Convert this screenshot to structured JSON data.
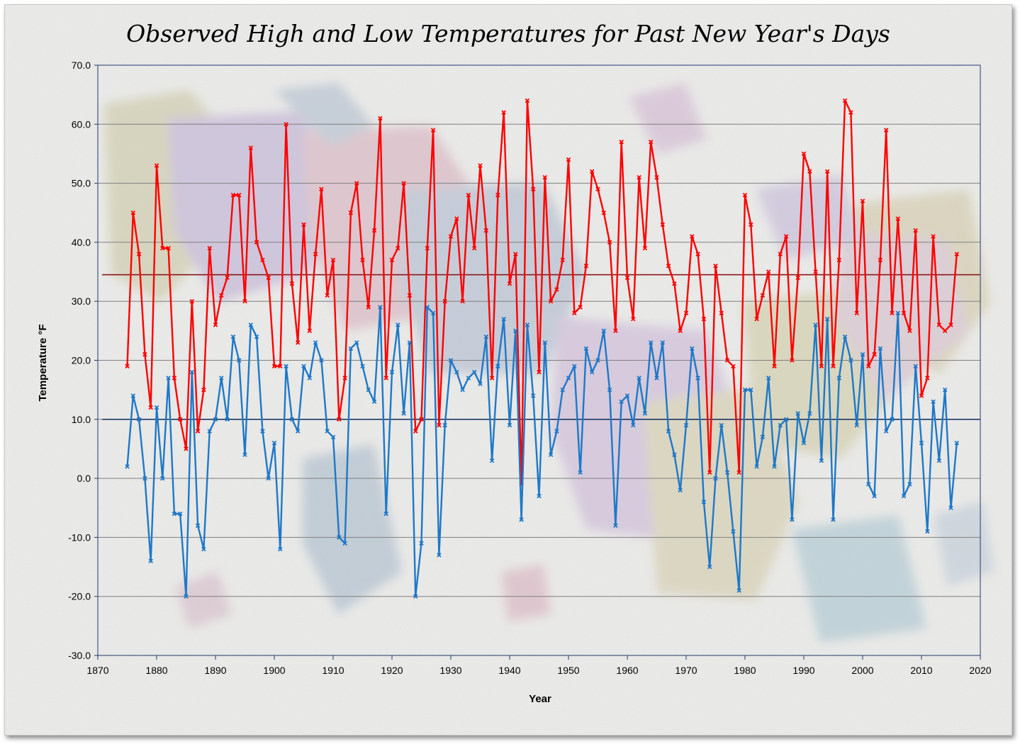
{
  "chart_data": {
    "type": "line",
    "title": "Observed High and Low Temperatures for Past New Year's Days",
    "xlabel": "Year",
    "ylabel": "Temperature °F",
    "xlim": [
      1870,
      2020
    ],
    "ylim": [
      -30,
      70
    ],
    "x_ticks": [
      1870,
      1880,
      1890,
      1900,
      1910,
      1920,
      1930,
      1940,
      1950,
      1960,
      1970,
      1980,
      1990,
      2000,
      2010,
      2020
    ],
    "y_ticks": [
      "-30.0",
      "-20.0",
      "-10.0",
      "0.0",
      "10.0",
      "20.0",
      "30.0",
      "40.0",
      "50.0",
      "60.0",
      "70.0"
    ],
    "grid": "horizontal",
    "legend": "none",
    "reference_lines": [
      {
        "value": 34.5,
        "color": "#8b1a1a"
      },
      {
        "value": 10.0,
        "color": "#1f3864"
      }
    ],
    "x_start": 1875,
    "series": [
      {
        "color": "#ff0000",
        "values": [
          19,
          45,
          38,
          21,
          12,
          53,
          39,
          39,
          17,
          10,
          5,
          30,
          8,
          15,
          39,
          26,
          31,
          34,
          48,
          48,
          30,
          56,
          40,
          37,
          34,
          19,
          19,
          60,
          33,
          23,
          43,
          25,
          38,
          49,
          31,
          37,
          10,
          17,
          45,
          50,
          37,
          29,
          42,
          61,
          17,
          37,
          39,
          50,
          31,
          8,
          10,
          39,
          59,
          9,
          30,
          41,
          44,
          30,
          48,
          39,
          53,
          42,
          17,
          48,
          62,
          33,
          38,
          -1,
          64,
          49,
          18,
          51,
          30,
          32,
          37,
          54,
          28,
          29,
          36,
          52,
          49,
          45,
          40,
          25,
          57,
          34,
          27,
          51,
          39,
          57,
          51,
          43,
          36,
          33,
          25,
          28,
          41,
          38,
          27,
          1,
          36,
          28,
          20,
          19,
          1,
          48,
          43,
          27,
          31,
          35,
          19,
          38,
          41,
          20,
          34,
          55,
          52,
          35,
          19,
          52,
          19,
          37,
          64,
          62,
          28,
          47,
          19,
          21,
          37,
          59,
          28,
          44,
          28,
          25,
          42,
          14,
          17,
          41,
          26,
          25,
          26,
          38
        ]
      },
      {
        "color": "#1e78c8",
        "values": [
          2,
          14,
          10,
          0,
          -14,
          12,
          0,
          17,
          -6,
          -6,
          -20,
          18,
          -8,
          -12,
          8,
          10,
          17,
          10,
          24,
          20,
          4,
          26,
          24,
          8,
          0,
          6,
          -12,
          19,
          10,
          8,
          19,
          17,
          23,
          20,
          8,
          7,
          -10,
          -11,
          22,
          23,
          19,
          15,
          13,
          29,
          -6,
          18,
          26,
          11,
          23,
          -20,
          -11,
          29,
          28,
          -13,
          9,
          20,
          18,
          15,
          17,
          18,
          16,
          24,
          3,
          19,
          27,
          9,
          25,
          -7,
          26,
          14,
          -3,
          23,
          4,
          8,
          15,
          17,
          19,
          1,
          22,
          18,
          20,
          25,
          15,
          -8,
          13,
          14,
          9,
          17,
          11,
          23,
          17,
          23,
          8,
          4,
          -2,
          9,
          22,
          17,
          -4,
          -15,
          0,
          9,
          1,
          -9,
          -19,
          15,
          15,
          2,
          7,
          17,
          2,
          9,
          10,
          -7,
          11,
          6,
          11,
          26,
          3,
          27,
          -7,
          17,
          24,
          20,
          9,
          21,
          -1,
          -3,
          22,
          8,
          10,
          28,
          -3,
          -1,
          19,
          6,
          -9,
          13,
          3,
          15,
          -5,
          6
        ]
      }
    ]
  }
}
